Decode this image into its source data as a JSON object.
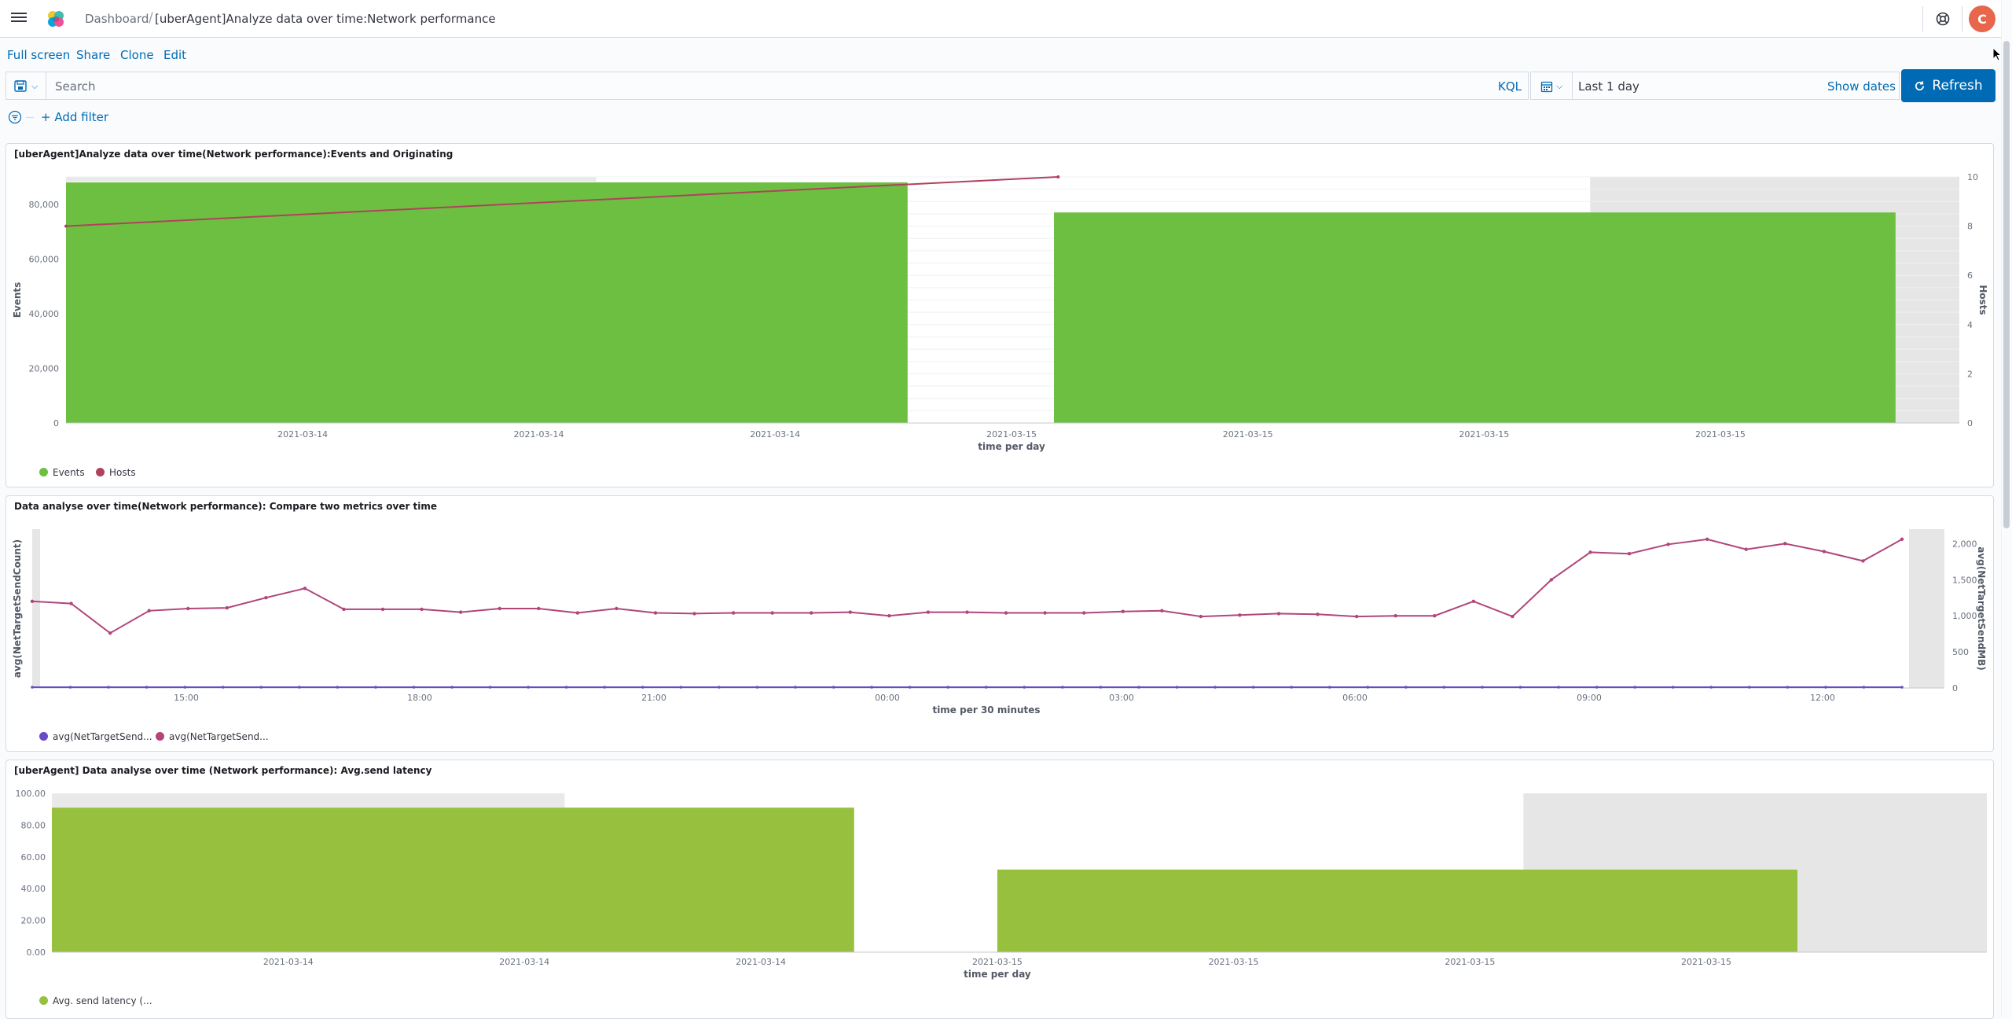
{
  "header": {
    "breadcrumb_root": "Dashboard",
    "breadcrumb_current": "[uberAgent]Analyze data over time:Network performance",
    "avatar_initial": "C"
  },
  "menu": {
    "full_screen": "Full screen",
    "share": "Share",
    "clone": "Clone",
    "edit": "Edit"
  },
  "query": {
    "search_placeholder": "Search",
    "language": "KQL",
    "time_range": "Last 1 day",
    "show_dates": "Show dates",
    "refresh": "Refresh"
  },
  "filters": {
    "add_filter": "+ Add filter"
  },
  "panels": [
    {
      "title": "[uberAgent]Analyze data over time(Network performance):Events and Originating",
      "legend": [
        "Events",
        "Hosts"
      ]
    },
    {
      "title": "Data analyse over time(Network performance): Compare two metrics over time",
      "legend": [
        "avg(NetTargetSend...",
        "avg(NetTargetSend..."
      ]
    },
    {
      "title": "[uberAgent] Data analyse over time (Network performance): Avg.send latency",
      "legend": [
        "Avg. send latency (..."
      ]
    }
  ],
  "colors": {
    "events": "#6dbf42",
    "hosts": "#b1415d",
    "series1": "#6a4bc4",
    "series2": "#b0467a",
    "latency": "#97c03f",
    "accent": "#006bb4"
  },
  "chart_data": [
    {
      "type": "bar",
      "title": "[uberAgent]Analyze data over time(Network performance):Events and Originating",
      "xlabel": "time per day",
      "ylabel": "Events",
      "y2label": "Hosts",
      "x_ticks": [
        "2021-03-14",
        "2021-03-14",
        "2021-03-14",
        "2021-03-15",
        "2021-03-15",
        "2021-03-15",
        "2021-03-15"
      ],
      "categories": [
        "2021-03-14",
        "2021-03-15"
      ],
      "ylim": [
        0,
        90000
      ],
      "y_ticks": [
        "0",
        "20,000",
        "40,000",
        "60,000",
        "80,000"
      ],
      "y2lim": [
        0,
        10
      ],
      "y2_ticks": [
        "0",
        "2",
        "4",
        "6",
        "8",
        "10"
      ],
      "series": [
        {
          "name": "Events",
          "axis": "left",
          "values": [
            88000,
            77000
          ]
        },
        {
          "name": "Hosts",
          "axis": "right",
          "kind": "line",
          "values": [
            8,
            10
          ]
        }
      ],
      "legend_position": "bottom-left"
    },
    {
      "type": "line",
      "title": "Data analyse over time(Network performance): Compare two metrics over time",
      "xlabel": "time per 30 minutes",
      "ylabel": "avg(NetTargetSendCount)",
      "y2label": "avg(NetTargetSendMB)",
      "x_ticks": [
        "15:00",
        "18:00",
        "21:00",
        "00:00",
        "03:00",
        "06:00",
        "09:00",
        "12:00"
      ],
      "y2lim": [
        0,
        2200
      ],
      "y2_ticks": [
        "0",
        "500",
        "1,000",
        "1,500",
        "2,000"
      ],
      "series": [
        {
          "name": "avg(NetTargetSend...",
          "axis": "left",
          "values": [
            0,
            0,
            0,
            0,
            0,
            0,
            0,
            0,
            0,
            0,
            0,
            0,
            0,
            0,
            0,
            0,
            0,
            0,
            0,
            0,
            0,
            0,
            0,
            0,
            0,
            0,
            0,
            0,
            0,
            0,
            0,
            0,
            0,
            0,
            0,
            0,
            0,
            0,
            0,
            0,
            0,
            0,
            0,
            0,
            0,
            0,
            0,
            0,
            0,
            0
          ]
        },
        {
          "name": "avg(NetTargetSend...",
          "axis": "right",
          "values": [
            1200,
            1170,
            760,
            1070,
            1100,
            1110,
            1250,
            1380,
            1090,
            1090,
            1090,
            1050,
            1100,
            1100,
            1040,
            1100,
            1040,
            1030,
            1040,
            1040,
            1040,
            1050,
            1000,
            1050,
            1050,
            1040,
            1040,
            1040,
            1060,
            1070,
            990,
            1010,
            1030,
            1020,
            990,
            1000,
            1000,
            1200,
            990,
            1500,
            1880,
            1860,
            1990,
            2060,
            1920,
            2000,
            1890,
            1760,
            2060
          ]
        }
      ],
      "legend_position": "bottom-left"
    },
    {
      "type": "bar",
      "title": "[uberAgent] Data analyse over time (Network performance): Avg.send latency",
      "xlabel": "time per day",
      "x_ticks": [
        "2021-03-14",
        "2021-03-14",
        "2021-03-14",
        "2021-03-15",
        "2021-03-15",
        "2021-03-15",
        "2021-03-15"
      ],
      "categories": [
        "2021-03-14",
        "2021-03-15"
      ],
      "ylim": [
        0,
        100
      ],
      "y_ticks": [
        "0.00",
        "20.00",
        "40.00",
        "60.00",
        "80.00",
        "100.00"
      ],
      "series": [
        {
          "name": "Avg. send latency (...",
          "values": [
            91,
            52
          ]
        }
      ],
      "legend_position": "bottom-left"
    }
  ]
}
